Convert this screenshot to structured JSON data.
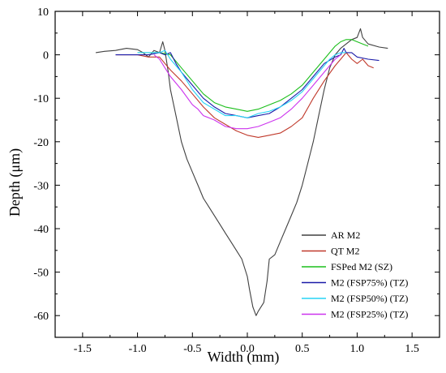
{
  "chart_data": {
    "type": "line",
    "title": "",
    "xlabel": "Width (mm)",
    "ylabel": "Depth (μm)",
    "xlim": [
      -1.75,
      1.75
    ],
    "ylim": [
      -65,
      10
    ],
    "x_ticks": [
      -1.5,
      -1.0,
      -0.5,
      0.0,
      0.5,
      1.0,
      1.5
    ],
    "x_tick_labels": [
      "-1.5",
      "-1.0",
      "-0.5",
      "0.0",
      "0.5",
      "1.0",
      "1.5"
    ],
    "y_ticks": [
      10,
      0,
      -10,
      -20,
      -30,
      -40,
      -50,
      -60
    ],
    "y_tick_labels": [
      "10",
      "0",
      "-10",
      "-20",
      "-30",
      "-40",
      "-50",
      "-60"
    ],
    "grid": false,
    "legend_position": "bottom-right",
    "series": [
      {
        "name": "AR M2",
        "color": "#404040",
        "x": [
          -1.38,
          -1.3,
          -1.2,
          -1.1,
          -1.0,
          -0.95,
          -0.9,
          -0.85,
          -0.8,
          -0.77,
          -0.75,
          -0.72,
          -0.7,
          -0.65,
          -0.6,
          -0.55,
          -0.5,
          -0.45,
          -0.4,
          -0.35,
          -0.3,
          -0.25,
          -0.2,
          -0.15,
          -0.1,
          -0.05,
          0.0,
          0.02,
          0.05,
          0.08,
          0.1,
          0.15,
          0.18,
          0.2,
          0.25,
          0.3,
          0.35,
          0.4,
          0.45,
          0.5,
          0.55,
          0.6,
          0.65,
          0.7,
          0.75,
          0.8,
          0.85,
          0.9,
          0.95,
          1.0,
          1.03,
          1.05,
          1.1,
          1.2,
          1.28
        ],
        "y": [
          0.5,
          0.8,
          1.0,
          1.5,
          1.2,
          0.5,
          -0.5,
          1.0,
          0.5,
          3.0,
          1.0,
          -4.0,
          -8.0,
          -14.0,
          -20.0,
          -24.0,
          -27.0,
          -30.0,
          -33.0,
          -35.0,
          -37.0,
          -39.0,
          -41.0,
          -43.0,
          -45.0,
          -47.0,
          -51.0,
          -54.0,
          -58.0,
          -60.0,
          -59.0,
          -57.0,
          -52.0,
          -47.0,
          -46.0,
          -43.0,
          -40.0,
          -37.0,
          -34.0,
          -30.0,
          -25.0,
          -20.0,
          -14.0,
          -8.0,
          -3.0,
          0.0,
          1.5,
          2.5,
          3.5,
          4.0,
          6.0,
          4.0,
          2.5,
          1.8,
          1.5
        ]
      },
      {
        "name": "QT M2",
        "color": "#c0392b",
        "x": [
          -1.2,
          -1.0,
          -0.9,
          -0.8,
          -0.75,
          -0.7,
          -0.6,
          -0.5,
          -0.4,
          -0.3,
          -0.2,
          -0.1,
          0.0,
          0.1,
          0.2,
          0.3,
          0.4,
          0.5,
          0.6,
          0.7,
          0.8,
          0.85,
          0.9,
          0.95,
          1.0,
          1.05,
          1.1,
          1.15
        ],
        "y": [
          0.0,
          0.0,
          -0.5,
          -0.5,
          -2.0,
          -3.5,
          -6.0,
          -9.0,
          -12.0,
          -14.5,
          -16.0,
          -17.5,
          -18.5,
          -19.0,
          -18.5,
          -18.0,
          -16.5,
          -14.5,
          -10.0,
          -6.0,
          -2.5,
          -1.0,
          0.5,
          -1.0,
          -2.0,
          -1.0,
          -2.5,
          -3.0
        ]
      },
      {
        "name": "FSPed M2  (SZ)",
        "color": "#1cbf1c",
        "x": [
          -1.0,
          -0.9,
          -0.8,
          -0.7,
          -0.6,
          -0.5,
          -0.4,
          -0.3,
          -0.2,
          -0.1,
          0.0,
          0.1,
          0.2,
          0.3,
          0.4,
          0.5,
          0.6,
          0.7,
          0.75,
          0.8,
          0.85,
          0.9,
          0.95,
          1.0,
          1.05,
          1.1
        ],
        "y": [
          0.5,
          0.5,
          0.5,
          0.0,
          -3.0,
          -6.0,
          -9.0,
          -11.0,
          -12.0,
          -12.5,
          -13.0,
          -12.5,
          -11.5,
          -10.5,
          -9.0,
          -7.0,
          -4.0,
          -1.0,
          0.5,
          2.0,
          3.0,
          3.5,
          3.5,
          3.0,
          2.5,
          2.0
        ]
      },
      {
        "name": "M2 (FSP75%) (TZ)",
        "color": "#1a1aa8",
        "x": [
          -1.2,
          -1.1,
          -1.0,
          -0.9,
          -0.8,
          -0.75,
          -0.7,
          -0.65,
          -0.6,
          -0.5,
          -0.4,
          -0.3,
          -0.2,
          -0.1,
          0.0,
          0.1,
          0.2,
          0.3,
          0.4,
          0.5,
          0.6,
          0.7,
          0.8,
          0.85,
          0.88,
          0.9,
          0.95,
          1.0,
          1.1,
          1.2
        ],
        "y": [
          0.0,
          0.0,
          0.0,
          0.0,
          0.5,
          0.0,
          0.5,
          -2.0,
          -4.0,
          -7.0,
          -10.0,
          -12.0,
          -13.5,
          -14.0,
          -14.5,
          -14.0,
          -13.5,
          -12.0,
          -10.0,
          -8.0,
          -5.0,
          -2.0,
          -0.5,
          0.0,
          1.5,
          0.5,
          0.5,
          -0.5,
          -1.0,
          -1.3
        ]
      },
      {
        "name": "M2 (FSP50%) (TZ)",
        "color": "#27d3f5",
        "x": [
          -1.0,
          -0.9,
          -0.8,
          -0.75,
          -0.7,
          -0.6,
          -0.5,
          -0.4,
          -0.3,
          -0.2,
          -0.1,
          0.0,
          0.1,
          0.2,
          0.3,
          0.4,
          0.5,
          0.6,
          0.7,
          0.75,
          0.8,
          0.85,
          0.9
        ],
        "y": [
          0.5,
          0.5,
          0.5,
          1.0,
          -1.0,
          -4.0,
          -8.0,
          -11.0,
          -12.5,
          -14.0,
          -14.0,
          -14.5,
          -13.5,
          -13.0,
          -12.0,
          -10.5,
          -8.5,
          -5.5,
          -2.5,
          -1.0,
          0.0,
          0.5,
          0.5
        ]
      },
      {
        "name": "M2 (FSP25%) (TZ)",
        "color": "#cc33ee",
        "x": [
          -0.85,
          -0.8,
          -0.75,
          -0.7,
          -0.6,
          -0.5,
          -0.45,
          -0.4,
          -0.3,
          -0.2,
          -0.1,
          0.0,
          0.1,
          0.2,
          0.3,
          0.4,
          0.5,
          0.6,
          0.7,
          0.8,
          0.85
        ],
        "y": [
          0.0,
          -1.0,
          -3.0,
          -5.0,
          -8.0,
          -11.5,
          -12.5,
          -14.0,
          -15.0,
          -16.5,
          -17.0,
          -17.0,
          -16.5,
          -15.5,
          -14.5,
          -12.5,
          -10.0,
          -7.0,
          -4.0,
          -1.0,
          0.0
        ]
      }
    ]
  }
}
